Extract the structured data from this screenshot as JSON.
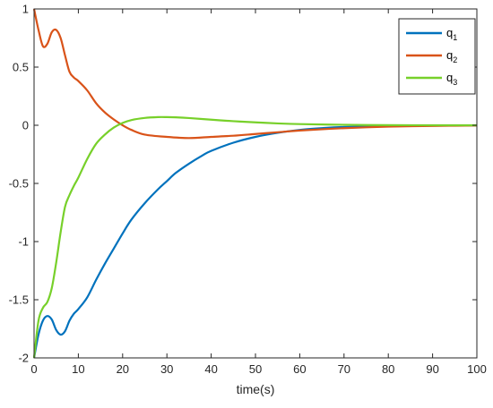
{
  "chart_data": {
    "type": "line",
    "title": "",
    "xlabel": "time(s)",
    "ylabel": "",
    "xlim": [
      0,
      100
    ],
    "ylim": [
      -2,
      1
    ],
    "xticks": [
      0,
      10,
      20,
      30,
      40,
      50,
      60,
      70,
      80,
      90,
      100
    ],
    "yticks": [
      -2,
      -1.5,
      -1,
      -0.5,
      0,
      0.5,
      1
    ],
    "ytick_labels": [
      "-2",
      "-1.5",
      "-1",
      "-0.5",
      "0",
      "0.5",
      "1"
    ],
    "grid": false,
    "legend_position": "top-right",
    "series": [
      {
        "name": "q",
        "name_sub": "1",
        "color": "#0072BD",
        "x": [
          0,
          1,
          2,
          3,
          4,
          5,
          6,
          7,
          8,
          9,
          10,
          12,
          14,
          16,
          18,
          20,
          22,
          25,
          28,
          30,
          32,
          35,
          38,
          40,
          45,
          50,
          55,
          60,
          65,
          70,
          80,
          90,
          100
        ],
        "y": [
          -2.0,
          -1.8,
          -1.68,
          -1.64,
          -1.67,
          -1.76,
          -1.8,
          -1.77,
          -1.68,
          -1.62,
          -1.58,
          -1.48,
          -1.33,
          -1.19,
          -1.06,
          -0.93,
          -0.81,
          -0.67,
          -0.55,
          -0.48,
          -0.41,
          -0.33,
          -0.26,
          -0.22,
          -0.15,
          -0.1,
          -0.065,
          -0.04,
          -0.025,
          -0.015,
          -0.006,
          -0.002,
          -0.001
        ]
      },
      {
        "name": "q",
        "name_sub": "2",
        "color": "#D95319",
        "x": [
          0,
          1,
          2,
          3,
          4,
          5,
          6,
          7,
          8,
          9,
          10,
          12,
          14,
          16,
          18,
          20,
          22,
          25,
          30,
          35,
          40,
          45,
          50,
          55,
          60,
          70,
          80,
          90,
          100
        ],
        "y": [
          1.0,
          0.82,
          0.68,
          0.7,
          0.8,
          0.82,
          0.75,
          0.6,
          0.46,
          0.41,
          0.38,
          0.3,
          0.19,
          0.11,
          0.05,
          0.0,
          -0.04,
          -0.08,
          -0.1,
          -0.11,
          -0.1,
          -0.09,
          -0.075,
          -0.06,
          -0.045,
          -0.025,
          -0.012,
          -0.006,
          -0.002
        ]
      },
      {
        "name": "q",
        "name_sub": "3",
        "color": "#77D02A",
        "x": [
          0,
          1,
          2,
          3,
          4,
          5,
          6,
          7,
          8,
          9,
          10,
          12,
          14,
          16,
          18,
          20,
          22,
          25,
          28,
          30,
          32,
          35,
          40,
          45,
          50,
          55,
          60,
          70,
          80,
          90,
          100
        ],
        "y": [
          -2.0,
          -1.68,
          -1.57,
          -1.52,
          -1.4,
          -1.18,
          -0.92,
          -0.7,
          -0.6,
          -0.52,
          -0.45,
          -0.29,
          -0.16,
          -0.08,
          -0.02,
          0.02,
          0.045,
          0.063,
          0.07,
          0.07,
          0.068,
          0.062,
          0.048,
          0.035,
          0.025,
          0.016,
          0.01,
          0.004,
          0.001,
          0.0,
          0.0
        ]
      }
    ]
  }
}
